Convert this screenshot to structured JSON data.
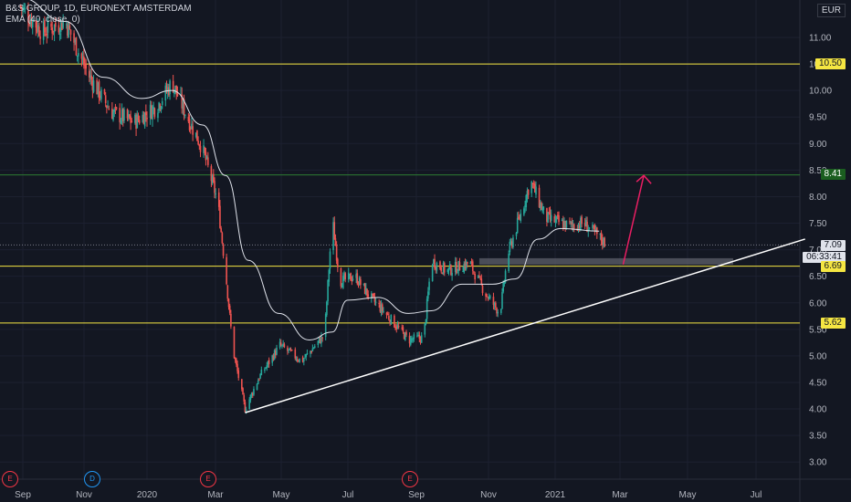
{
  "legend": {
    "title": "B&S GROUP, 1D, EURONEXT AMSTERDAM",
    "indicator": "EMA (40, close, 0)"
  },
  "currency": "EUR",
  "colors": {
    "background": "#131722",
    "up": "#26a69a",
    "down": "#ef5350",
    "ema": "#e0e3eb",
    "support": "#f5e642",
    "resistance": "#2e7d32",
    "arrow": "#e91e63"
  },
  "price_tags": {
    "top_line": "10.50",
    "green_line": "8.41",
    "last": "7.09",
    "countdown": "06:33:41",
    "mid_line": "6.69",
    "low_line": "5.62"
  },
  "events": [
    {
      "type": "E",
      "label": "E"
    },
    {
      "type": "D",
      "label": "D"
    },
    {
      "type": "E",
      "label": "E"
    },
    {
      "type": "E",
      "label": "E"
    }
  ],
  "chart_data": {
    "type": "candlestick",
    "title": "B&S GROUP, 1D, EURONEXT AMSTERDAM",
    "x_ticks": [
      "Sep",
      "Nov",
      "2020",
      "Mar",
      "May",
      "Jul",
      "Sep",
      "Nov",
      "2021",
      "Mar",
      "May",
      "Jul"
    ],
    "y_ticks": [
      "1",
      "11.00",
      "10.50",
      "10.00",
      "9.50",
      "9.00",
      "8.50",
      "8.00",
      "7.50",
      "7.00",
      "6.50",
      "6.00",
      "5.50",
      "5.00",
      "4.50",
      "4.00",
      "3.50",
      "3.00"
    ],
    "y_range": [
      2.6,
      12.1
    ],
    "horizontal_levels": [
      10.5,
      8.41,
      6.69,
      5.62
    ],
    "last_price": 7.09,
    "price_path": [
      [
        "2019-08-25",
        11.6
      ],
      [
        "2019-09-15",
        11.1
      ],
      [
        "2019-10-06",
        11.3
      ],
      [
        "2019-10-27",
        10.3
      ],
      [
        "2019-11-17",
        9.6
      ],
      [
        "2019-12-08",
        9.4
      ],
      [
        "2019-12-29",
        9.7
      ],
      [
        "2020-01-12",
        10.15
      ],
      [
        "2020-01-26",
        9.5
      ],
      [
        "2020-02-09",
        8.9
      ],
      [
        "2020-02-23",
        7.9
      ],
      [
        "2020-03-01",
        6.6
      ],
      [
        "2020-03-08",
        5.1
      ],
      [
        "2020-03-19",
        4.0
      ],
      [
        "2020-04-01",
        4.6
      ],
      [
        "2020-04-20",
        5.2
      ],
      [
        "2020-05-10",
        4.9
      ],
      [
        "2020-05-31",
        5.4
      ],
      [
        "2020-06-07",
        7.6
      ],
      [
        "2020-06-14",
        6.4
      ],
      [
        "2020-06-28",
        6.5
      ],
      [
        "2020-07-12",
        6.1
      ],
      [
        "2020-07-26",
        5.8
      ],
      [
        "2020-08-16",
        5.3
      ],
      [
        "2020-08-30",
        5.35
      ],
      [
        "2020-09-06",
        6.8
      ],
      [
        "2020-09-20",
        6.6
      ],
      [
        "2020-10-11",
        6.75
      ],
      [
        "2020-10-25",
        6.2
      ],
      [
        "2020-11-08",
        5.8
      ],
      [
        "2020-11-15",
        6.9
      ],
      [
        "2020-11-29",
        7.8
      ],
      [
        "2020-12-06",
        8.3
      ],
      [
        "2020-12-20",
        7.6
      ],
      [
        "2021-01-10",
        7.45
      ],
      [
        "2021-01-24",
        7.5
      ],
      [
        "2021-02-14",
        7.1
      ]
    ],
    "ema_series": {
      "name": "EMA (40, close, 0)",
      "points": [
        [
          "2019-08-25",
          11.75
        ],
        [
          "2019-10-06",
          11.3
        ],
        [
          "2019-11-10",
          10.25
        ],
        [
          "2019-12-15",
          9.85
        ],
        [
          "2020-01-12",
          10.0
        ],
        [
          "2020-02-09",
          9.35
        ],
        [
          "2020-03-01",
          8.4
        ],
        [
          "2020-03-22",
          6.8
        ],
        [
          "2020-04-19",
          5.8
        ],
        [
          "2020-05-17",
          5.3
        ],
        [
          "2020-06-07",
          5.45
        ],
        [
          "2020-06-21",
          6.05
        ],
        [
          "2020-07-19",
          6.1
        ],
        [
          "2020-08-16",
          5.8
        ],
        [
          "2020-09-06",
          5.85
        ],
        [
          "2020-10-04",
          6.35
        ],
        [
          "2020-11-01",
          6.35
        ],
        [
          "2020-11-22",
          6.45
        ],
        [
          "2020-12-13",
          7.2
        ],
        [
          "2021-01-03",
          7.4
        ],
        [
          "2021-02-07",
          7.35
        ]
      ]
    },
    "annotations": [
      {
        "type": "trendline",
        "from": [
          "2020-03-19",
          3.93
        ],
        "to": [
          "2021-08-15",
          7.2
        ]
      },
      {
        "type": "zone",
        "from": [
          "2020-10-20",
          6.72
        ],
        "to": [
          "2021-06-10",
          6.84
        ]
      },
      {
        "type": "arrow",
        "from": [
          "2021-03-01",
          6.72
        ],
        "to": [
          "2021-03-20",
          8.4
        ]
      }
    ]
  }
}
